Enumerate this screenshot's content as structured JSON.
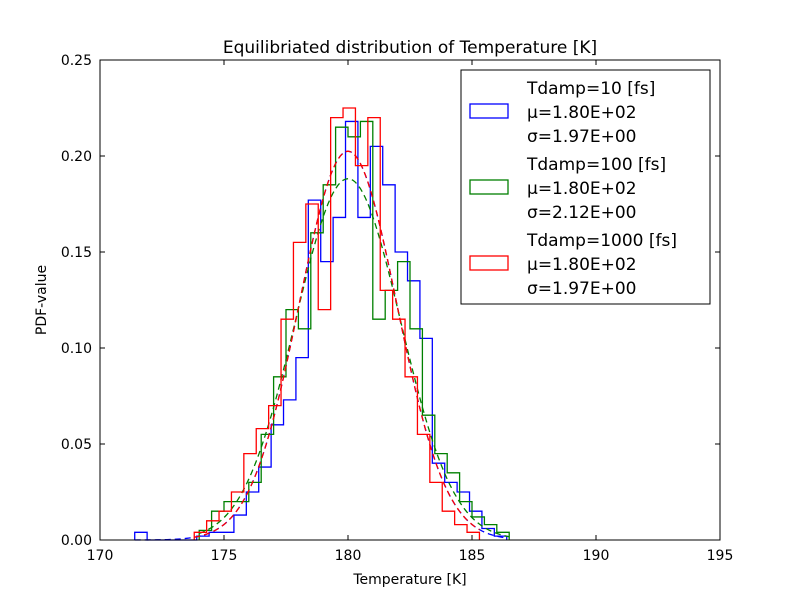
{
  "chart_data": {
    "type": "histogram",
    "title": "Equilibriated distribution of Temperature [K]",
    "xlabel": "Temperature [K]",
    "ylabel": "PDF-value",
    "xlim": [
      170,
      195
    ],
    "ylim": [
      0,
      0.25
    ],
    "xticks": [
      170,
      175,
      180,
      185,
      190,
      195
    ],
    "xtick_labels": [
      "170",
      "175",
      "180",
      "185",
      "190",
      "195"
    ],
    "yticks": [
      0,
      0.05,
      0.1,
      0.15,
      0.2,
      0.25
    ],
    "ytick_labels": [
      "0.00",
      "0.05",
      "0.10",
      "0.15",
      "0.20",
      "0.25"
    ],
    "grid": false,
    "legend_position": "top-right",
    "series": [
      {
        "name": "Tdamp=10 [fs]",
        "mu_label": "μ=1.80E+02",
        "sigma_label": "σ=1.97E+00",
        "color": "#0000ff",
        "mu": 180.0,
        "sigma": 1.97,
        "bin_edges": [
          171.4,
          171.9,
          172.4,
          172.9,
          173.4,
          173.9,
          174.4,
          174.9,
          175.4,
          175.9,
          176.4,
          176.9,
          177.4,
          177.9,
          178.4,
          178.9,
          179.4,
          179.9,
          180.4,
          180.9,
          181.4,
          181.9,
          182.4,
          182.9,
          183.4,
          183.9,
          184.4,
          184.9,
          185.4,
          185.9,
          186.4
        ],
        "counts": [
          0.004,
          0.0,
          0.0,
          0.0,
          0.0,
          0.002,
          0.004,
          0.004,
          0.013,
          0.025,
          0.038,
          0.06,
          0.073,
          0.095,
          0.177,
          0.145,
          0.168,
          0.218,
          0.168,
          0.205,
          0.185,
          0.15,
          0.135,
          0.105,
          0.04,
          0.03,
          0.025,
          0.015,
          0.006,
          0.002
        ]
      },
      {
        "name": "Tdamp=100 [fs]",
        "mu_label": "μ=1.80E+02",
        "sigma_label": "σ=2.12E+00",
        "color": "#008000",
        "mu": 180.0,
        "sigma": 2.12,
        "bin_edges": [
          174.0,
          174.5,
          175.0,
          175.5,
          176.0,
          176.5,
          177.0,
          177.5,
          178.0,
          178.5,
          179.0,
          179.5,
          180.0,
          180.5,
          181.0,
          181.5,
          182.0,
          182.5,
          183.0,
          183.5,
          184.0,
          184.5,
          185.0,
          185.5,
          186.0,
          186.5
        ],
        "counts": [
          0.005,
          0.015,
          0.02,
          0.02,
          0.03,
          0.055,
          0.085,
          0.12,
          0.11,
          0.16,
          0.185,
          0.215,
          0.21,
          0.218,
          0.115,
          0.13,
          0.145,
          0.11,
          0.065,
          0.045,
          0.035,
          0.02,
          0.012,
          0.008,
          0.004
        ]
      },
      {
        "name": "Tdamp=1000 [fs]",
        "mu_label": "μ=1.80E+02",
        "sigma_label": "σ=1.97E+00",
        "color": "#ff0000",
        "mu": 180.0,
        "sigma": 1.97,
        "bin_edges": [
          173.8,
          174.3,
          174.8,
          175.3,
          175.8,
          176.3,
          176.8,
          177.3,
          177.8,
          178.3,
          178.8,
          179.3,
          179.8,
          180.3,
          180.8,
          181.3,
          181.8,
          182.3,
          182.8,
          183.3,
          183.8,
          184.3,
          184.8,
          185.3
        ],
        "counts": [
          0.004,
          0.01,
          0.015,
          0.025,
          0.045,
          0.058,
          0.07,
          0.115,
          0.155,
          0.175,
          0.12,
          0.22,
          0.225,
          0.195,
          0.22,
          0.13,
          0.115,
          0.085,
          0.055,
          0.03,
          0.015,
          0.008,
          0.004
        ]
      }
    ]
  }
}
